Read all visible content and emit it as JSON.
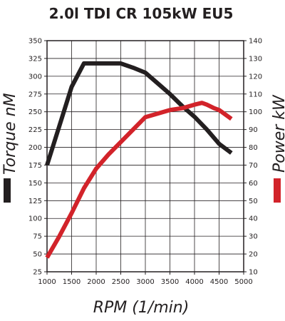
{
  "chart_data": {
    "type": "line",
    "title": "2.0l TDI CR 105kW EU5",
    "xlabel": "RPM (1/min)",
    "ylabel_left": "Torque nM",
    "ylabel_right": "Power kW",
    "xlim": [
      1000,
      5000
    ],
    "ylim_left": [
      25,
      350
    ],
    "ylim_right": [
      10,
      140
    ],
    "x_ticks": [
      "1000",
      "1500",
      "2000",
      "2500",
      "3000",
      "3500",
      "4000",
      "4500",
      "5000"
    ],
    "y_ticks_left": [
      "25",
      "50",
      "75",
      "100",
      "125",
      "150",
      "175",
      "200",
      "225",
      "250",
      "275",
      "300",
      "325",
      "350"
    ],
    "y_ticks_right": [
      "10",
      "20",
      "30",
      "40",
      "50",
      "60",
      "70",
      "80",
      "90",
      "100",
      "110",
      "120",
      "130",
      "140"
    ],
    "grid": true,
    "series": [
      {
        "name": "Torque nM",
        "axis": "left",
        "color": "#231f20",
        "x": [
          1000,
          1250,
          1500,
          1750,
          2000,
          2250,
          2500,
          2750,
          3000,
          3250,
          3500,
          3750,
          4000,
          4250,
          4500,
          4750
        ],
        "y": [
          175,
          230,
          285,
          318,
          318,
          318,
          318,
          312,
          305,
          290,
          275,
          258,
          243,
          225,
          205,
          192
        ]
      },
      {
        "name": "Power kW",
        "axis": "right",
        "color": "#d2232a",
        "x": [
          1000,
          1250,
          1500,
          1750,
          2000,
          2250,
          2500,
          2750,
          3000,
          3250,
          3500,
          3750,
          4000,
          4150,
          4250,
          4400,
          4500,
          4750
        ],
        "y": [
          18,
          30,
          43,
          57,
          68,
          76,
          83,
          90,
          97,
          99,
          101,
          102,
          104,
          105,
          104,
          102,
          101,
          96
        ]
      }
    ]
  }
}
